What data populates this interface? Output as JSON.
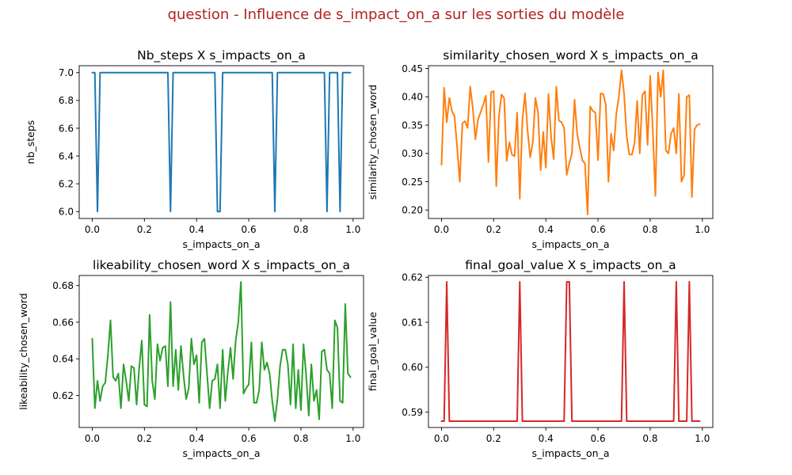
{
  "suptitle": "question - Influence de s_impact_on_a sur les sorties du modèle",
  "chart_data": [
    {
      "type": "line",
      "title": "Nb_steps X s_impacts_on_a",
      "xlabel": "s_impacts_on_a",
      "ylabel": "nb_steps",
      "color": "#1f77b4",
      "xlim": [
        -0.05,
        1.04
      ],
      "ylim": [
        5.95,
        7.05
      ],
      "xticks": [
        0.0,
        0.2,
        0.4,
        0.6,
        0.8,
        1.0
      ],
      "xtick_labels": [
        "0.0",
        "0.2",
        "0.4",
        "0.6",
        "0.8",
        "1.0"
      ],
      "yticks": [
        6.0,
        6.2,
        6.4,
        6.6,
        6.8,
        7.0
      ],
      "ytick_labels": [
        "6.0",
        "6.2",
        "6.4",
        "6.6",
        "6.8",
        "7.0"
      ],
      "series": [
        {
          "x": [
            0.0,
            0.01,
            0.02,
            0.03,
            0.29,
            0.3,
            0.31,
            0.47,
            0.48,
            0.49,
            0.5,
            0.69,
            0.7,
            0.71,
            0.89,
            0.9,
            0.91,
            0.94,
            0.95,
            0.96,
            0.99
          ],
          "y": [
            7,
            7,
            6,
            7,
            7,
            6,
            7,
            7,
            6,
            6,
            7,
            7,
            6,
            7,
            7,
            6,
            7,
            7,
            6,
            7,
            7
          ]
        }
      ]
    },
    {
      "type": "line",
      "title": "similarity_chosen_word X s_impacts_on_a",
      "xlabel": "s_impacts_on_a",
      "ylabel": "similarity_chosen_word",
      "color": "#ff7f0e",
      "xlim": [
        -0.05,
        1.04
      ],
      "ylim": [
        0.185,
        0.455
      ],
      "xticks": [
        0.0,
        0.2,
        0.4,
        0.6,
        0.8,
        1.0
      ],
      "xtick_labels": [
        "0.0",
        "0.2",
        "0.4",
        "0.6",
        "0.8",
        "1.0"
      ],
      "yticks": [
        0.2,
        0.25,
        0.3,
        0.35,
        0.4,
        0.45
      ],
      "ytick_labels": [
        "0.20",
        "0.25",
        "0.30",
        "0.35",
        "0.40",
        "0.45"
      ],
      "series": [
        {
          "x": [
            0.0,
            0.01,
            0.02,
            0.03,
            0.04,
            0.05,
            0.06,
            0.07,
            0.08,
            0.09,
            0.1,
            0.11,
            0.12,
            0.13,
            0.14,
            0.15,
            0.16,
            0.17,
            0.18,
            0.19,
            0.2,
            0.21,
            0.22,
            0.23,
            0.24,
            0.25,
            0.26,
            0.27,
            0.28,
            0.29,
            0.3,
            0.31,
            0.32,
            0.33,
            0.34,
            0.35,
            0.36,
            0.37,
            0.38,
            0.39,
            0.4,
            0.41,
            0.42,
            0.43,
            0.44,
            0.45,
            0.46,
            0.47,
            0.48,
            0.49,
            0.5,
            0.51,
            0.52,
            0.53,
            0.54,
            0.55,
            0.56,
            0.57,
            0.58,
            0.59,
            0.6,
            0.61,
            0.62,
            0.63,
            0.64,
            0.65,
            0.66,
            0.67,
            0.68,
            0.69,
            0.7,
            0.71,
            0.72,
            0.73,
            0.74,
            0.75,
            0.76,
            0.77,
            0.78,
            0.79,
            0.8,
            0.81,
            0.82,
            0.83,
            0.84,
            0.85,
            0.86,
            0.87,
            0.88,
            0.89,
            0.9,
            0.91,
            0.92,
            0.93,
            0.94,
            0.95,
            0.96,
            0.97,
            0.98,
            0.99
          ],
          "y": [
            0.28,
            0.416,
            0.355,
            0.398,
            0.375,
            0.365,
            0.31,
            0.25,
            0.353,
            0.357,
            0.345,
            0.418,
            0.38,
            0.325,
            0.36,
            0.373,
            0.386,
            0.402,
            0.285,
            0.408,
            0.41,
            0.242,
            0.365,
            0.404,
            0.398,
            0.287,
            0.32,
            0.298,
            0.295,
            0.372,
            0.22,
            0.358,
            0.406,
            0.34,
            0.293,
            0.32,
            0.398,
            0.372,
            0.27,
            0.338,
            0.275,
            0.405,
            0.33,
            0.29,
            0.418,
            0.358,
            0.355,
            0.345,
            0.262,
            0.283,
            0.3,
            0.395,
            0.335,
            0.31,
            0.288,
            0.282,
            0.192,
            0.383,
            0.375,
            0.372,
            0.288,
            0.406,
            0.405,
            0.385,
            0.25,
            0.335,
            0.305,
            0.37,
            0.4,
            0.447,
            0.405,
            0.33,
            0.298,
            0.298,
            0.318,
            0.393,
            0.3,
            0.403,
            0.41,
            0.315,
            0.437,
            0.34,
            0.225,
            0.443,
            0.4,
            0.447,
            0.305,
            0.3,
            0.335,
            0.345,
            0.3,
            0.405,
            0.25,
            0.262,
            0.4,
            0.403,
            0.223,
            0.343,
            0.35,
            0.352
          ]
        }
      ]
    },
    {
      "type": "line",
      "title": "likeability_chosen_word X s_impacts_on_a",
      "xlabel": "s_impacts_on_a",
      "ylabel": "likeability_chosen_word",
      "color": "#2ca02c",
      "xlim": [
        -0.05,
        1.04
      ],
      "ylim": [
        0.6025,
        0.6855
      ],
      "xticks": [
        0.0,
        0.2,
        0.4,
        0.6,
        0.8,
        1.0
      ],
      "xtick_labels": [
        "0.0",
        "0.2",
        "0.4",
        "0.6",
        "0.8",
        "1.0"
      ],
      "yticks": [
        0.62,
        0.64,
        0.66,
        0.68
      ],
      "ytick_labels": [
        "0.62",
        "0.64",
        "0.66",
        "0.68"
      ],
      "series": [
        {
          "x": [
            0.0,
            0.01,
            0.02,
            0.03,
            0.04,
            0.05,
            0.06,
            0.07,
            0.08,
            0.09,
            0.1,
            0.11,
            0.12,
            0.13,
            0.14,
            0.15,
            0.16,
            0.17,
            0.18,
            0.19,
            0.2,
            0.21,
            0.22,
            0.23,
            0.24,
            0.25,
            0.26,
            0.27,
            0.28,
            0.29,
            0.3,
            0.31,
            0.32,
            0.33,
            0.34,
            0.35,
            0.36,
            0.37,
            0.38,
            0.39,
            0.4,
            0.41,
            0.42,
            0.43,
            0.44,
            0.45,
            0.46,
            0.47,
            0.48,
            0.49,
            0.5,
            0.51,
            0.52,
            0.53,
            0.54,
            0.55,
            0.56,
            0.57,
            0.58,
            0.59,
            0.6,
            0.61,
            0.62,
            0.63,
            0.64,
            0.65,
            0.66,
            0.67,
            0.68,
            0.69,
            0.7,
            0.71,
            0.72,
            0.73,
            0.74,
            0.75,
            0.76,
            0.77,
            0.78,
            0.79,
            0.8,
            0.81,
            0.82,
            0.83,
            0.84,
            0.85,
            0.86,
            0.87,
            0.88,
            0.89,
            0.9,
            0.91,
            0.92,
            0.93,
            0.94,
            0.95,
            0.96,
            0.97,
            0.98,
            0.99
          ],
          "y": [
            0.651,
            0.613,
            0.628,
            0.617,
            0.625,
            0.627,
            0.642,
            0.661,
            0.63,
            0.628,
            0.632,
            0.613,
            0.637,
            0.628,
            0.617,
            0.636,
            0.635,
            0.615,
            0.635,
            0.65,
            0.615,
            0.614,
            0.664,
            0.628,
            0.618,
            0.648,
            0.639,
            0.646,
            0.647,
            0.625,
            0.671,
            0.625,
            0.645,
            0.623,
            0.647,
            0.631,
            0.618,
            0.624,
            0.651,
            0.637,
            0.642,
            0.616,
            0.649,
            0.651,
            0.632,
            0.613,
            0.628,
            0.629,
            0.637,
            0.613,
            0.645,
            0.617,
            0.633,
            0.646,
            0.629,
            0.65,
            0.66,
            0.682,
            0.621,
            0.624,
            0.626,
            0.649,
            0.616,
            0.616,
            0.623,
            0.649,
            0.634,
            0.638,
            0.632,
            0.617,
            0.606,
            0.618,
            0.636,
            0.645,
            0.645,
            0.637,
            0.615,
            0.648,
            0.613,
            0.634,
            0.612,
            0.648,
            0.631,
            0.609,
            0.637,
            0.617,
            0.623,
            0.607,
            0.644,
            0.645,
            0.634,
            0.632,
            0.613,
            0.661,
            0.657,
            0.617,
            0.616,
            0.67,
            0.632,
            0.63
          ]
        }
      ]
    },
    {
      "type": "line",
      "title": "final_goal_value X s_impacts_on_a",
      "xlabel": "s_impacts_on_a",
      "ylabel": "final_goal_value",
      "color": "#d62728",
      "xlim": [
        -0.05,
        1.04
      ],
      "ylim": [
        0.5866,
        0.6204
      ],
      "xticks": [
        0.0,
        0.2,
        0.4,
        0.6,
        0.8,
        1.0
      ],
      "xtick_labels": [
        "0.0",
        "0.2",
        "0.4",
        "0.6",
        "0.8",
        "1.0"
      ],
      "yticks": [
        0.59,
        0.6,
        0.61,
        0.62
      ],
      "ytick_labels": [
        "0.59",
        "0.60",
        "0.61",
        "0.62"
      ],
      "series": [
        {
          "x": [
            0.0,
            0.01,
            0.02,
            0.03,
            0.29,
            0.3,
            0.31,
            0.47,
            0.48,
            0.49,
            0.5,
            0.69,
            0.7,
            0.71,
            0.89,
            0.9,
            0.91,
            0.94,
            0.95,
            0.96,
            0.99
          ],
          "y": [
            0.588,
            0.588,
            0.619,
            0.588,
            0.588,
            0.619,
            0.588,
            0.588,
            0.619,
            0.619,
            0.588,
            0.588,
            0.619,
            0.588,
            0.588,
            0.619,
            0.588,
            0.588,
            0.619,
            0.588,
            0.588
          ]
        }
      ]
    }
  ]
}
